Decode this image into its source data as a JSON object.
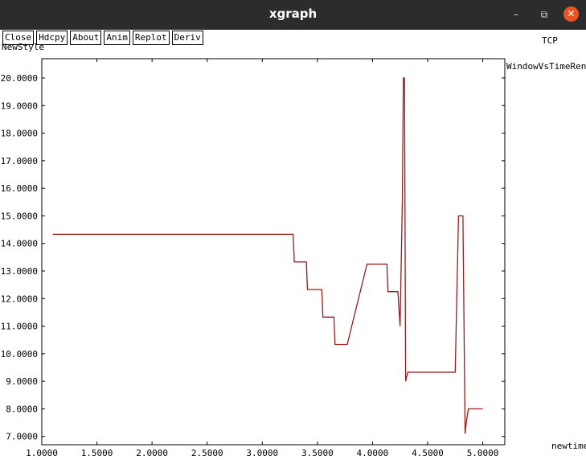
{
  "window": {
    "title": "xgraph",
    "minimize_glyph": "–",
    "maximize_glyph": "⧉",
    "close_glyph": "✕"
  },
  "toolbar": {
    "buttons": [
      "Close",
      "Hdcpy",
      "About",
      "Anim",
      "Replot",
      "Deriv"
    ]
  },
  "header": {
    "left_label": "NewStyle",
    "right_label": "TCP"
  },
  "colors": {
    "series": "#9b1b1b",
    "titlebar": "#2c2c2c",
    "close_button": "#e95420"
  },
  "chart_data": {
    "type": "line",
    "title": "TCP",
    "xlabel": "newtime",
    "ylabel": "",
    "xlim": [
      1.0,
      5.2
    ],
    "ylim": [
      6.7,
      20.7
    ],
    "grid": false,
    "legend": "top-right",
    "x_ticks": [
      "1.0000",
      "1.5000",
      "2.0000",
      "2.5000",
      "3.0000",
      "3.5000",
      "4.0000",
      "4.5000",
      "5.0000"
    ],
    "y_ticks": [
      "7.0000",
      "8.0000",
      "9.0000",
      "10.0000",
      "11.0000",
      "12.0000",
      "13.0000",
      "14.0000",
      "15.0000",
      "16.0000",
      "17.0000",
      "18.0000",
      "19.0000",
      "20.0000"
    ],
    "series": [
      {
        "name": "WindowVsTimeReno",
        "x": [
          1.1,
          3.28,
          3.29,
          3.4,
          3.41,
          3.54,
          3.55,
          3.65,
          3.66,
          3.77,
          3.95,
          4.13,
          4.14,
          4.23,
          4.25,
          4.27,
          4.28,
          4.29,
          4.3,
          4.32,
          4.33,
          4.75,
          4.78,
          4.79,
          4.82,
          4.84,
          4.85,
          4.87,
          5.0
        ],
        "y": [
          14.33,
          14.33,
          13.33,
          13.33,
          12.33,
          12.33,
          11.33,
          11.33,
          10.33,
          10.33,
          13.25,
          13.25,
          12.25,
          12.25,
          11.0,
          15.5,
          20.0,
          20.0,
          9.0,
          9.33,
          9.33,
          9.33,
          15.0,
          15.0,
          15.0,
          7.1,
          7.5,
          8.0,
          8.0
        ]
      }
    ]
  }
}
